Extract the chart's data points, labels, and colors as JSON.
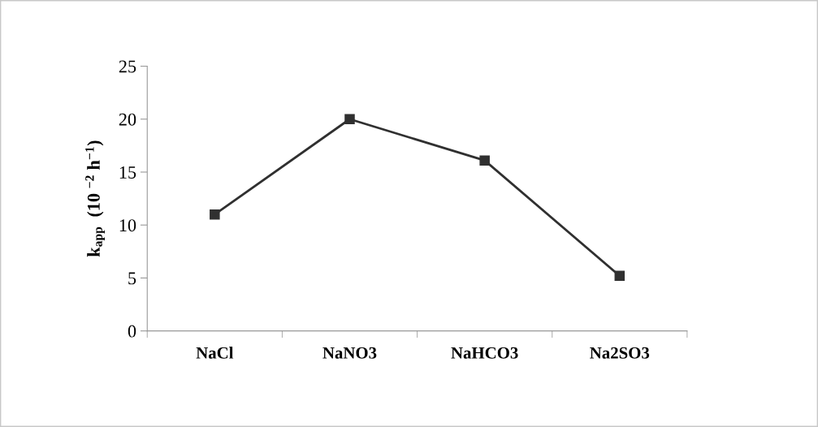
{
  "chart_data": {
    "type": "line",
    "ylabel": "k$_{app}$  (10 $^{−2}$ h$^{−1}$)",
    "categories": [
      "NaCl",
      "NaNO3",
      "NaHCO3",
      "Na2SO3"
    ],
    "series": [
      {
        "color": "#303030",
        "values": [
          11.0,
          20.0,
          16.1,
          5.2
        ]
      }
    ],
    "ylim": [
      0,
      25
    ],
    "yticks": [
      0,
      5,
      10,
      15,
      20,
      25
    ],
    "grid": false,
    "marker": "square",
    "line_style": "solid"
  }
}
